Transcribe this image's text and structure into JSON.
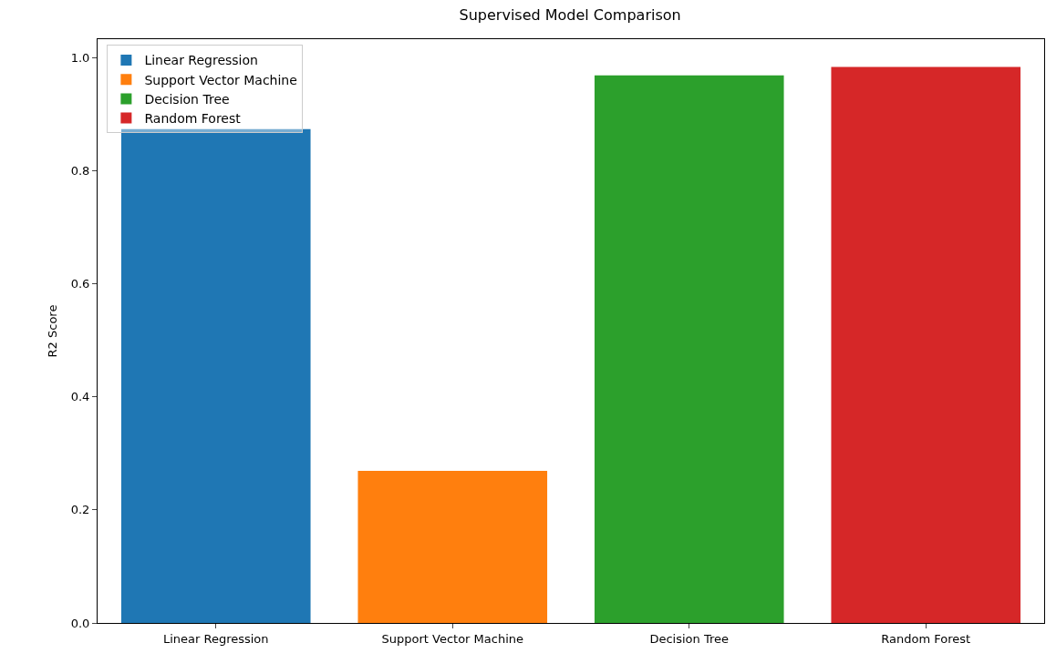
{
  "chart_data": {
    "type": "bar",
    "title": "Supervised Model Comparison",
    "ylabel": "R2 Score",
    "categories": [
      "Linear Regression",
      "Support Vector Machine",
      "Decision Tree",
      "Random Forest"
    ],
    "series": [
      {
        "name": "Linear Regression",
        "color": "#1f77b4",
        "values": [
          0.874,
          null,
          null,
          null
        ]
      },
      {
        "name": "Support Vector Machine",
        "color": "#ff7f0e",
        "values": [
          null,
          0.269,
          null,
          null
        ]
      },
      {
        "name": "Decision Tree",
        "color": "#2ca02c",
        "values": [
          null,
          null,
          0.969,
          null
        ]
      },
      {
        "name": "Random Forest",
        "color": "#d62728",
        "values": [
          null,
          null,
          null,
          0.984
        ]
      }
    ],
    "ylim": [
      0,
      1.033
    ],
    "yticks": [
      {
        "value": 0,
        "label": "0.0"
      },
      0.2,
      0.4,
      0.6,
      0.8,
      {
        "value": 1,
        "label": "1.0"
      }
    ],
    "grid": false,
    "legend": "top left"
  }
}
